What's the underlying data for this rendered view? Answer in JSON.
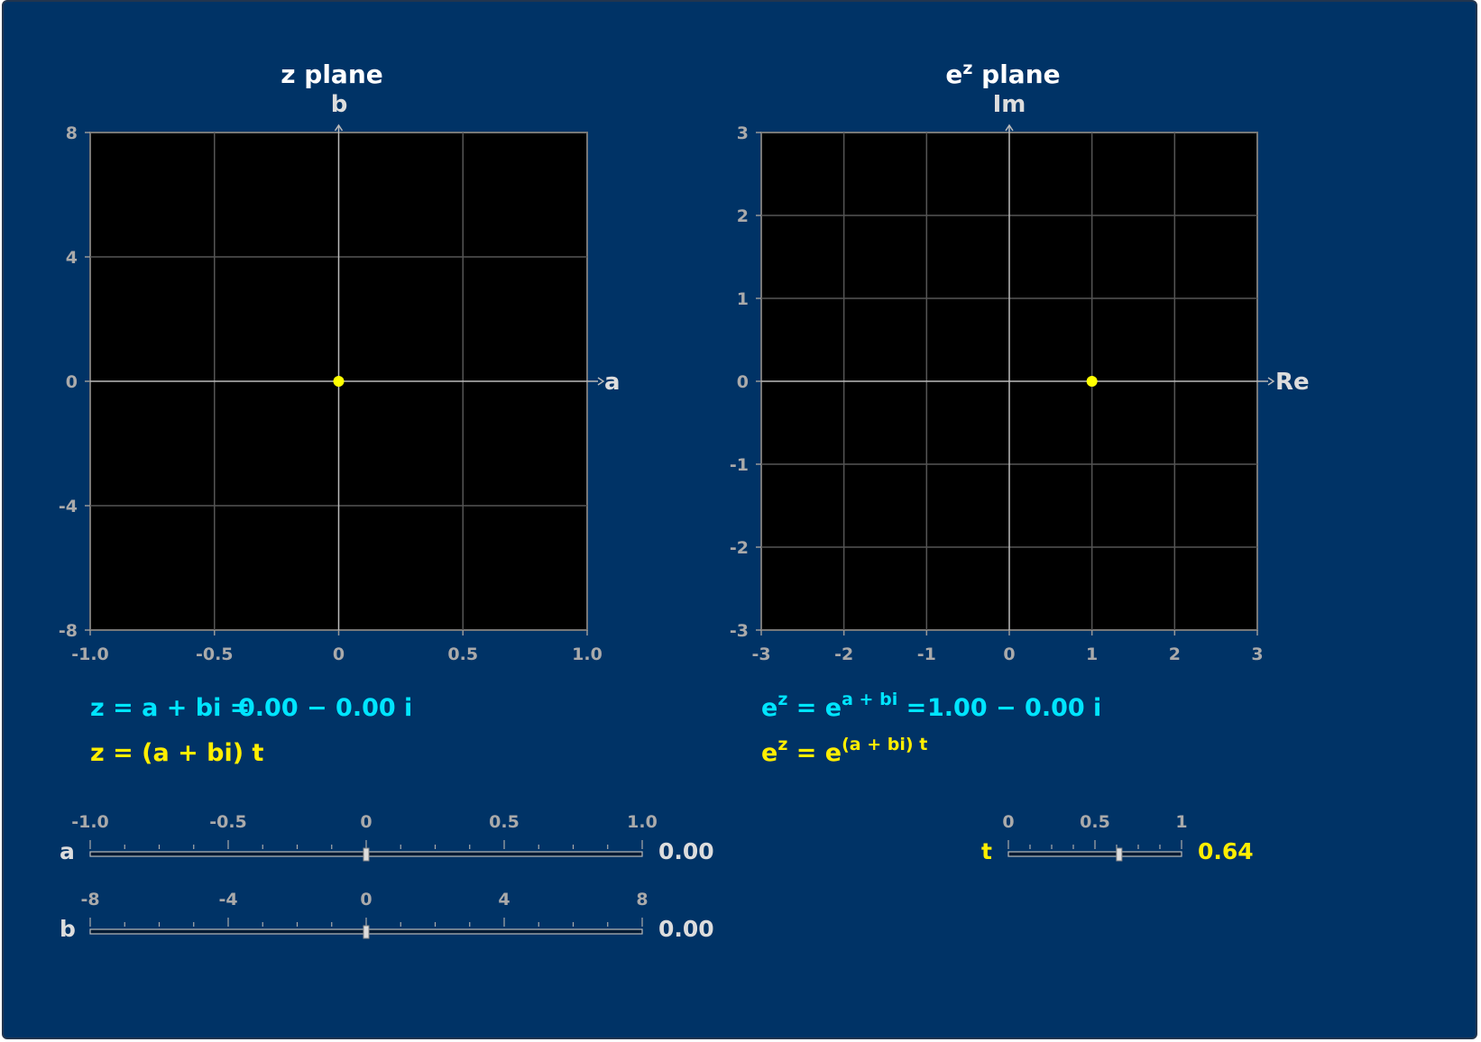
{
  "z_plane": {
    "title": "z plane",
    "x_axis_label": "a",
    "y_axis_label": "b",
    "x_ticks": [
      "-1.0",
      "-0.5",
      "0",
      "0.5",
      "1.0"
    ],
    "y_ticks": [
      "8",
      "4",
      "0",
      "-4",
      "-8"
    ],
    "point": {
      "a": 0.0,
      "b": 0.0
    }
  },
  "ez_plane": {
    "title_base": "e",
    "title_sup": "z",
    "title_rest": " plane",
    "x_axis_label": "Re",
    "y_axis_label": "Im",
    "x_ticks": [
      "-3",
      "-2",
      "-1",
      "0",
      "1",
      "2",
      "3"
    ],
    "y_ticks": [
      "3",
      "2",
      "1",
      "0",
      "-1",
      "-2",
      "-3"
    ],
    "point": {
      "re": 1.0,
      "im": 0.0
    }
  },
  "formulas": {
    "z_eq": "z = a + bi =",
    "z_value": "0.00 − 0.00 i",
    "z_param": "z = (a + bi) t",
    "ez_eq_e1": "e",
    "ez_eq_sup1": "z",
    "ez_eq_mid": " = e",
    "ez_eq_sup2": "a + bi",
    "ez_eq_end": " =",
    "ez_value": "1.00 − 0.00 i",
    "ez_param_e1": "e",
    "ez_param_sup1": "z",
    "ez_param_mid": " = e",
    "ez_param_sup2": "(a + bi) t"
  },
  "sliders": {
    "a": {
      "label": "a",
      "ticks": [
        "-1.0",
        "-0.5",
        "0",
        "0.5",
        "1.0"
      ],
      "min": -1,
      "max": 1,
      "value": 0.0,
      "display": "0.00"
    },
    "b": {
      "label": "b",
      "ticks": [
        "-8",
        "-4",
        "0",
        "4",
        "8"
      ],
      "min": -8,
      "max": 8,
      "value": 0.0,
      "display": "0.00"
    },
    "t": {
      "label": "t",
      "ticks": [
        "0",
        "0.5",
        "1"
      ],
      "min": 0,
      "max": 1,
      "value": 0.64,
      "display": "0.64"
    }
  },
  "colors": {
    "background": "#003366",
    "plot": "#000000",
    "point": "#ffff00",
    "cyan": "#00e5ff",
    "yellow": "#ffee00"
  }
}
